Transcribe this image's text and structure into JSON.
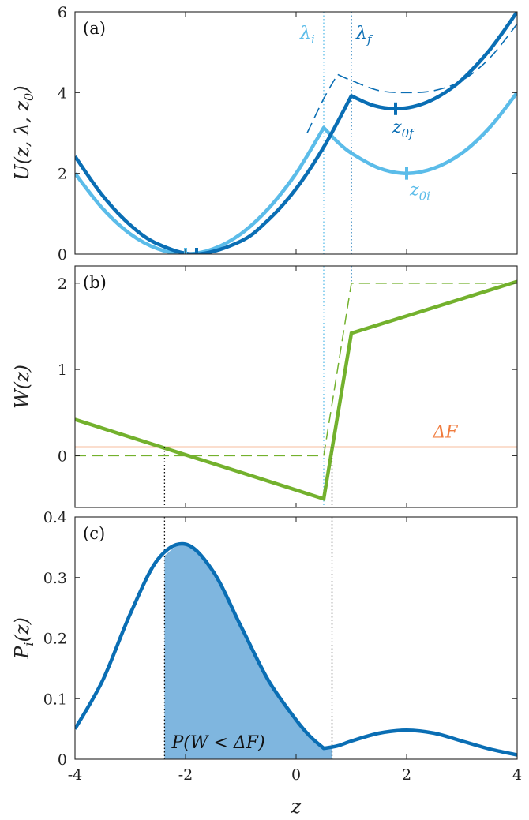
{
  "colors": {
    "dark_blue": "#0a6eb4",
    "light_blue": "#5bbce9",
    "green": "#73b12d",
    "orange": "#f07c3e",
    "fill_blue": "#7fb6df",
    "black": "#111111"
  },
  "chart_data": [
    {
      "panel_label": "(a)",
      "type": "line",
      "ylabel": "U(z, λ, z0)",
      "xlim": [
        -4,
        4
      ],
      "ylim": [
        0,
        6
      ],
      "xticks": [
        -4,
        -2,
        0,
        2,
        4
      ],
      "yticks": [
        0,
        2,
        4,
        6
      ],
      "params": {
        "lambda_i": 0.5,
        "lambda_f": 1.0,
        "z0i": 2,
        "z0f": 1.8,
        "min_i": -2,
        "min_f": -1.8
      },
      "annotations": {
        "lambda_i": "λi",
        "lambda_f": "λf",
        "z0i": "z0i",
        "z0f": "z0f"
      },
      "series": [
        {
          "name": "U(z, λi, z0i)",
          "color": "light_blue",
          "x": [
            -4,
            -3.5,
            -3,
            -2.5,
            -2,
            -1.5,
            -1,
            -0.5,
            0,
            0.5,
            0.75,
            1,
            1.5,
            2,
            2.5,
            3,
            3.5,
            4
          ],
          "y": [
            2,
            1.13,
            0.5,
            0.13,
            0,
            0.13,
            0.5,
            1.13,
            2,
            3.13,
            2.78,
            2.5,
            2.13,
            2,
            2.13,
            2.5,
            3.13,
            4
          ]
        },
        {
          "name": "U(z, λf, z0f)",
          "color": "dark_blue",
          "x": [
            -4,
            -3.5,
            -3,
            -2.5,
            -1.8,
            -1,
            -0.5,
            0,
            0.5,
            1,
            1.4,
            1.8,
            2.2,
            2.6,
            3,
            3.5,
            4
          ],
          "y": [
            2.42,
            1.45,
            0.72,
            0.25,
            0,
            0.32,
            0.85,
            1.62,
            2.65,
            3.92,
            3.68,
            3.6,
            3.68,
            3.92,
            4.32,
            5.05,
            6
          ]
        },
        {
          "name": "dashed reference",
          "color": "dark_blue",
          "dashed": true,
          "x": [
            0.2,
            0.5,
            0.75,
            1,
            1.5,
            2,
            2.5,
            3,
            3.5,
            4
          ],
          "y": [
            3.0,
            3.85,
            4.45,
            4.3,
            4.05,
            4.0,
            4.05,
            4.3,
            4.85,
            5.7
          ]
        }
      ]
    },
    {
      "panel_label": "(b)",
      "type": "line",
      "ylabel": "W(z)",
      "xlim": [
        -4,
        4
      ],
      "ylim": [
        -0.6,
        2.2
      ],
      "xticks": [
        -4,
        -2,
        0,
        2,
        4
      ],
      "yticks": [
        0,
        1,
        2
      ],
      "delta_f": 0.1,
      "delta_f_label": "ΔF",
      "crossings": [
        -2.38,
        0.65
      ],
      "series": [
        {
          "name": "W(z)",
          "color": "green",
          "x": [
            -4,
            0.5,
            1,
            4
          ],
          "y": [
            0.42,
            -0.5,
            1.42,
            2.02
          ]
        },
        {
          "name": "W step",
          "color": "green",
          "dashed": true,
          "x": [
            -4,
            -2,
            0.5,
            1,
            4
          ],
          "y": [
            0,
            0,
            0,
            2,
            2
          ]
        }
      ]
    },
    {
      "panel_label": "(c)",
      "type": "area",
      "ylabel": "Pi(z)",
      "xlabel": "z",
      "xlim": [
        -4,
        4
      ],
      "ylim": [
        0,
        0.4
      ],
      "xticks": [
        -4,
        -2,
        0,
        2,
        4
      ],
      "yticks": [
        0,
        0.1,
        0.2,
        0.3,
        0.4
      ],
      "shade_range": [
        -2.38,
        0.65
      ],
      "shade_label": "P(W < ΔF)",
      "series": [
        {
          "name": "Pi(z)",
          "color": "dark_blue",
          "x": [
            -4,
            -3.5,
            -3,
            -2.5,
            -2,
            -1.5,
            -1,
            -0.5,
            0,
            0.25,
            0.5,
            0.75,
            1,
            1.5,
            2,
            2.5,
            3,
            3.5,
            4
          ],
          "y": [
            0.05,
            0.13,
            0.24,
            0.33,
            0.355,
            0.31,
            0.22,
            0.13,
            0.065,
            0.038,
            0.018,
            0.022,
            0.03,
            0.043,
            0.048,
            0.043,
            0.03,
            0.017,
            0.007
          ]
        }
      ]
    }
  ]
}
